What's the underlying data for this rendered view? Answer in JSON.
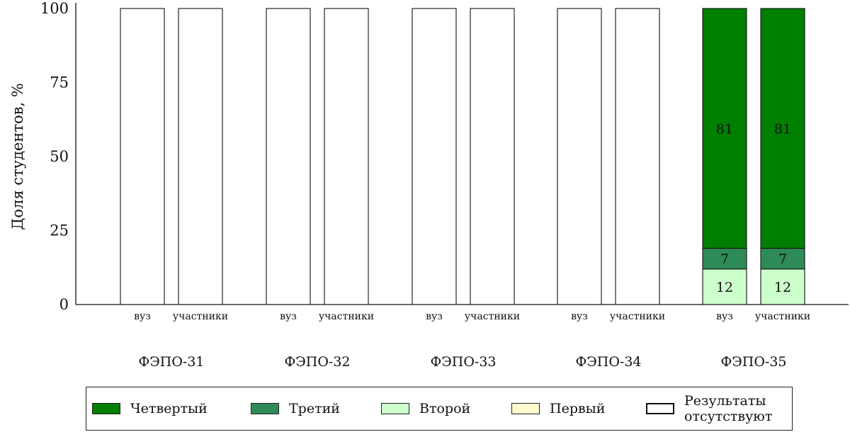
{
  "chart_data": {
    "type": "bar",
    "stacked": true,
    "ylabel": "Доля студентов, %",
    "ylim": [
      0,
      100
    ],
    "yticks": [
      0,
      25,
      50,
      75,
      100
    ],
    "groups": [
      {
        "label": "ФЭПО-31",
        "bars": [
          {
            "label": "вуз",
            "no_results": 100
          },
          {
            "label": "участники",
            "no_results": 100
          }
        ]
      },
      {
        "label": "ФЭПО-32",
        "bars": [
          {
            "label": "вуз",
            "no_results": 100
          },
          {
            "label": "участники",
            "no_results": 100
          }
        ]
      },
      {
        "label": "ФЭПО-33",
        "bars": [
          {
            "label": "вуз",
            "no_results": 100
          },
          {
            "label": "участники",
            "no_results": 100
          }
        ]
      },
      {
        "label": "ФЭПО-34",
        "bars": [
          {
            "label": "вуз",
            "no_results": 100
          },
          {
            "label": "участники",
            "no_results": 100
          }
        ]
      },
      {
        "label": "ФЭПО-35",
        "bars": [
          {
            "label": "вуз",
            "segments": {
              "Первый": 0,
              "Второй": 12,
              "Третий": 7,
              "Четвертый": 81
            }
          },
          {
            "label": "участники",
            "segments": {
              "Первый": 0,
              "Второй": 12,
              "Третий": 7,
              "Четвертый": 81
            }
          }
        ]
      }
    ],
    "stack_order": [
      "Первый",
      "Второй",
      "Третий",
      "Четвертый"
    ],
    "legend": {
      "placement": "bottom",
      "entries": [
        {
          "name": "Четвертый",
          "color": "#007f00"
        },
        {
          "name": "Третий",
          "color": "#2e8b57"
        },
        {
          "name": "Второй",
          "color": "#ccffcc"
        },
        {
          "name": "Первый",
          "color": "#fffacd"
        },
        {
          "name": "Результаты отсутствуют",
          "color": "#ffffff"
        }
      ]
    }
  }
}
